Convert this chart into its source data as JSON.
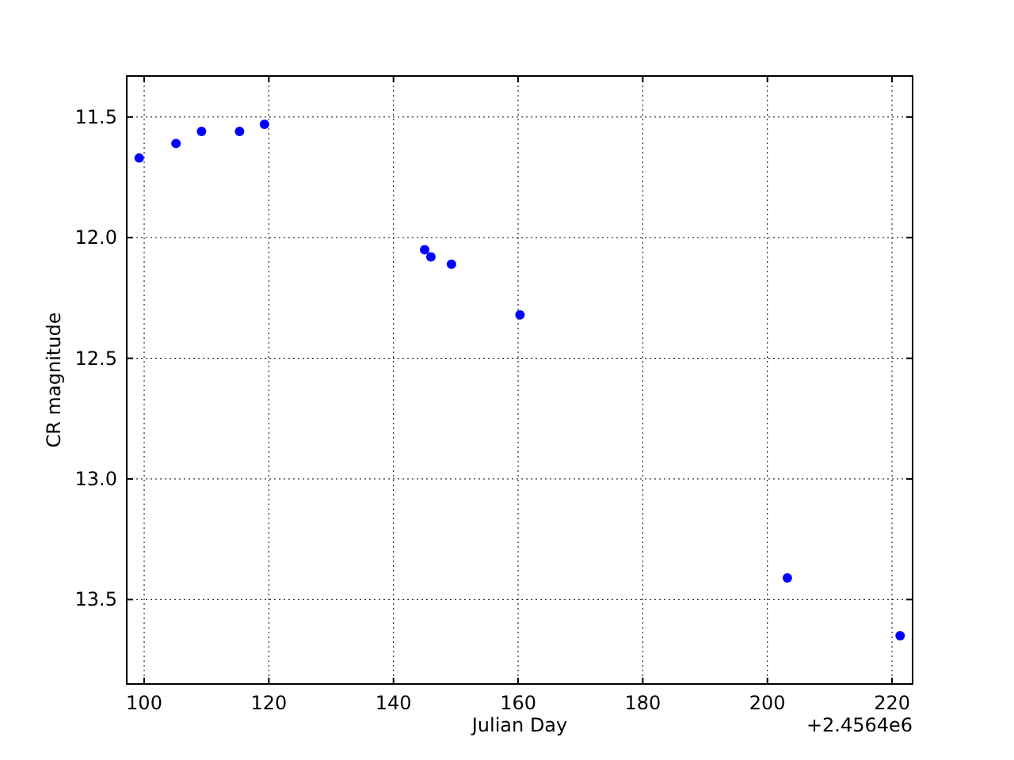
{
  "chart_data": {
    "type": "scatter",
    "xlabel": "Julian Day",
    "ylabel": "CR magnitude",
    "x": [
      99.2,
      105.1,
      109.2,
      115.3,
      119.3,
      145.0,
      146.0,
      149.3,
      160.3,
      203.2,
      221.3
    ],
    "series": [
      {
        "color": "#0000ff",
        "values": [
          11.67,
          11.61,
          11.56,
          11.56,
          11.53,
          12.05,
          12.08,
          12.11,
          12.32,
          13.41,
          13.65
        ]
      }
    ],
    "xlim": [
      97.2,
      223.3
    ],
    "xticks": [
      100,
      120,
      140,
      160,
      180,
      200,
      220
    ],
    "ylim": [
      13.85,
      11.33
    ],
    "yticks": [
      11.5,
      {
        "value": 12,
        "label": "12.0"
      },
      12.5,
      {
        "value": 13,
        "label": "13.0"
      },
      13.5
    ],
    "grid": true,
    "marker": "circle",
    "annotations": [
      "+2.4564e6"
    ]
  }
}
